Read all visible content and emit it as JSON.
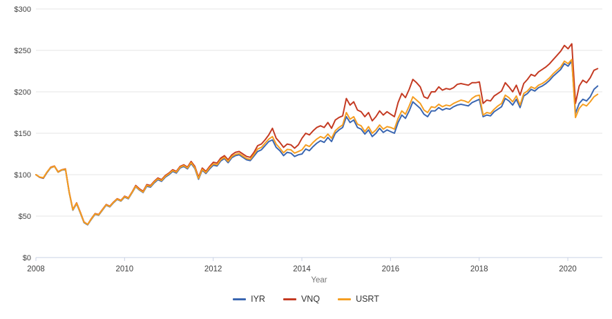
{
  "chart_data": {
    "type": "line",
    "title": "",
    "xlabel": "Year",
    "ylabel": "",
    "x_start": "2008-01",
    "x_end": "2020-09",
    "frequency": "monthly",
    "grid": true,
    "legend_position": "bottom",
    "ylim": [
      0,
      300
    ],
    "y_ticks": [
      {
        "value": 0,
        "label": "$0"
      },
      {
        "value": 50,
        "label": "$50"
      },
      {
        "value": 100,
        "label": "$100"
      },
      {
        "value": 150,
        "label": "$150"
      },
      {
        "value": 200,
        "label": "$200"
      },
      {
        "value": 250,
        "label": "$250"
      },
      {
        "value": 300,
        "label": "$300"
      }
    ],
    "x_ticks": [
      {
        "year": 2008,
        "label": "2008"
      },
      {
        "year": 2010,
        "label": "2010"
      },
      {
        "year": 2012,
        "label": "2012"
      },
      {
        "year": 2014,
        "label": "2014"
      },
      {
        "year": 2016,
        "label": "2016"
      },
      {
        "year": 2018,
        "label": "2018"
      },
      {
        "year": 2020,
        "label": "2020"
      }
    ],
    "series": [
      {
        "name": "IYR",
        "color": "#3A66B1",
        "values": [
          100.0,
          96.8,
          95.7,
          102.5,
          108.3,
          110.0,
          103.0,
          105.5,
          106.3,
          78.3,
          57.2,
          65.0,
          54.0,
          42.2,
          39.5,
          46.2,
          52.2,
          51.2,
          57.2,
          63.2,
          61.2,
          66.2,
          70.2,
          68.2,
          73.0,
          71.0,
          78.0,
          85.5,
          81.5,
          78.5,
          86.0,
          85.0,
          90.0,
          94.0,
          92.0,
          97.0,
          100.0,
          104.0,
          102.0,
          108.0,
          110.0,
          107.0,
          113.5,
          107.5,
          94.5,
          105.5,
          101.5,
          107.0,
          111.5,
          110.5,
          116.5,
          119.5,
          114.5,
          120.5,
          123.0,
          124.0,
          121.0,
          118.0,
          117.0,
          122.5,
          128.0,
          130.0,
          135.0,
          140.0,
          142.0,
          133.0,
          129.0,
          123.0,
          127.0,
          126.0,
          122.0,
          124.0,
          125.0,
          131.0,
          129.0,
          134.0,
          138.0,
          141.0,
          139.0,
          145.0,
          140.0,
          150.0,
          154.0,
          157.0,
          170.0,
          163.0,
          166.0,
          157.0,
          155.0,
          149.0,
          154.0,
          146.0,
          150.0,
          156.0,
          151.0,
          154.0,
          152.0,
          150.0,
          163.0,
          172.0,
          168.0,
          177.0,
          188.0,
          184.0,
          180.0,
          173.0,
          170.0,
          177.0,
          177.0,
          181.0,
          178.0,
          180.0,
          179.0,
          182.0,
          184.0,
          185.0,
          184.0,
          183.0,
          187.0,
          189.0,
          191.0,
          170.0,
          172.0,
          171.0,
          176.0,
          179.0,
          182.0,
          192.0,
          189.0,
          184.0,
          191.0,
          181.0,
          195.0,
          198.0,
          203.0,
          201.0,
          205.0,
          207.0,
          210.0,
          214.0,
          219.0,
          223.0,
          227.0,
          234.0,
          231.0,
          237.0,
          174.0,
          186.0,
          191.0,
          189.0,
          194.0,
          203.0,
          207.0
        ]
      },
      {
        "name": "VNQ",
        "color": "#C43A22",
        "values": [
          100.0,
          97.0,
          96.0,
          103.0,
          109.0,
          110.5,
          103.5,
          106.0,
          107.0,
          79.0,
          58.0,
          66.0,
          55.0,
          43.0,
          40.0,
          47.0,
          53.0,
          52.0,
          58.0,
          64.0,
          62.0,
          67.0,
          71.0,
          69.0,
          74.0,
          72.0,
          79.0,
          87.0,
          83.0,
          80.0,
          88.0,
          87.0,
          92.0,
          96.0,
          94.0,
          99.0,
          102.0,
          106.0,
          104.0,
          110.0,
          112.0,
          109.0,
          116.0,
          110.0,
          97.0,
          108.0,
          104.0,
          110.0,
          115.0,
          114.0,
          120.0,
          123.0,
          118.0,
          124.0,
          127.0,
          128.0,
          125.0,
          122.0,
          121.0,
          127.0,
          135.0,
          137.0,
          142.0,
          148.0,
          156.0,
          144.0,
          139.0,
          133.0,
          137.0,
          136.0,
          132.0,
          136.0,
          144.0,
          150.0,
          148.0,
          153.0,
          157.0,
          159.0,
          157.0,
          163.0,
          156.0,
          166.0,
          169.0,
          171.0,
          192.0,
          184.0,
          188.0,
          178.0,
          176.0,
          170.0,
          175.0,
          165.0,
          170.0,
          177.0,
          172.0,
          176.0,
          173.0,
          170.0,
          187.0,
          198.0,
          193.0,
          203.0,
          215.0,
          211.0,
          206.0,
          194.0,
          192.0,
          200.0,
          200.0,
          206.0,
          202.0,
          204.0,
          203.0,
          205.0,
          209.0,
          210.0,
          209.0,
          208.0,
          211.0,
          211.0,
          212.0,
          186.0,
          190.0,
          189.0,
          195.0,
          198.0,
          201.0,
          211.0,
          206.0,
          200.0,
          208.0,
          196.0,
          210.0,
          215.0,
          221.0,
          219.0,
          224.0,
          227.0,
          230.0,
          234.0,
          239.0,
          244.0,
          249.0,
          256.0,
          252.0,
          258.0,
          186.0,
          207.0,
          214.0,
          211.0,
          217.0,
          226.0,
          228.0
        ]
      },
      {
        "name": "USRT",
        "color": "#F59E21",
        "values": [
          100.0,
          97.2,
          96.3,
          103.2,
          108.6,
          110.2,
          103.2,
          105.8,
          106.6,
          78.6,
          57.6,
          65.5,
          54.5,
          42.6,
          40.0,
          46.6,
          52.6,
          51.6,
          57.6,
          63.6,
          61.6,
          66.6,
          70.6,
          68.6,
          73.5,
          71.5,
          78.5,
          86.0,
          82.0,
          79.0,
          87.0,
          86.0,
          91.0,
          95.0,
          93.0,
          98.0,
          101.0,
          105.0,
          103.0,
          109.0,
          111.0,
          108.0,
          114.5,
          108.5,
          95.5,
          106.5,
          102.5,
          108.5,
          113.0,
          112.0,
          118.0,
          121.0,
          116.0,
          122.0,
          124.5,
          125.5,
          122.5,
          119.5,
          118.5,
          124.5,
          131.0,
          133.0,
          138.0,
          143.0,
          146.0,
          137.0,
          132.0,
          126.5,
          130.5,
          130.0,
          126.0,
          128.0,
          130.0,
          136.0,
          134.0,
          139.0,
          143.0,
          146.0,
          144.0,
          149.0,
          144.0,
          153.0,
          157.0,
          160.0,
          175.0,
          167.0,
          170.0,
          161.0,
          159.0,
          152.0,
          158.0,
          150.0,
          154.0,
          160.0,
          155.0,
          158.0,
          157.0,
          155.0,
          168.0,
          177.0,
          173.0,
          183.0,
          194.0,
          190.0,
          186.0,
          178.0,
          175.0,
          182.0,
          181.0,
          185.0,
          182.0,
          184.0,
          183.0,
          186.0,
          188.0,
          190.0,
          189.0,
          187.0,
          192.0,
          195.0,
          196.0,
          172.0,
          175.0,
          174.0,
          179.0,
          183.0,
          186.0,
          196.0,
          193.0,
          188.0,
          195.0,
          184.0,
          198.0,
          201.0,
          206.0,
          204.0,
          208.0,
          210.0,
          213.0,
          217.0,
          222.0,
          226.0,
          230.0,
          237.0,
          234.0,
          239.0,
          169.0,
          180.0,
          185.0,
          183.0,
          188.0,
          194.0,
          197.0
        ]
      }
    ],
    "colors": {
      "grid_line": "#E6E6E6",
      "axis_line": "#C9D2E4",
      "tick_label": "#404040",
      "axis_title": "#757575",
      "legend_text": "#333333",
      "background": "#FFFFFF"
    }
  }
}
